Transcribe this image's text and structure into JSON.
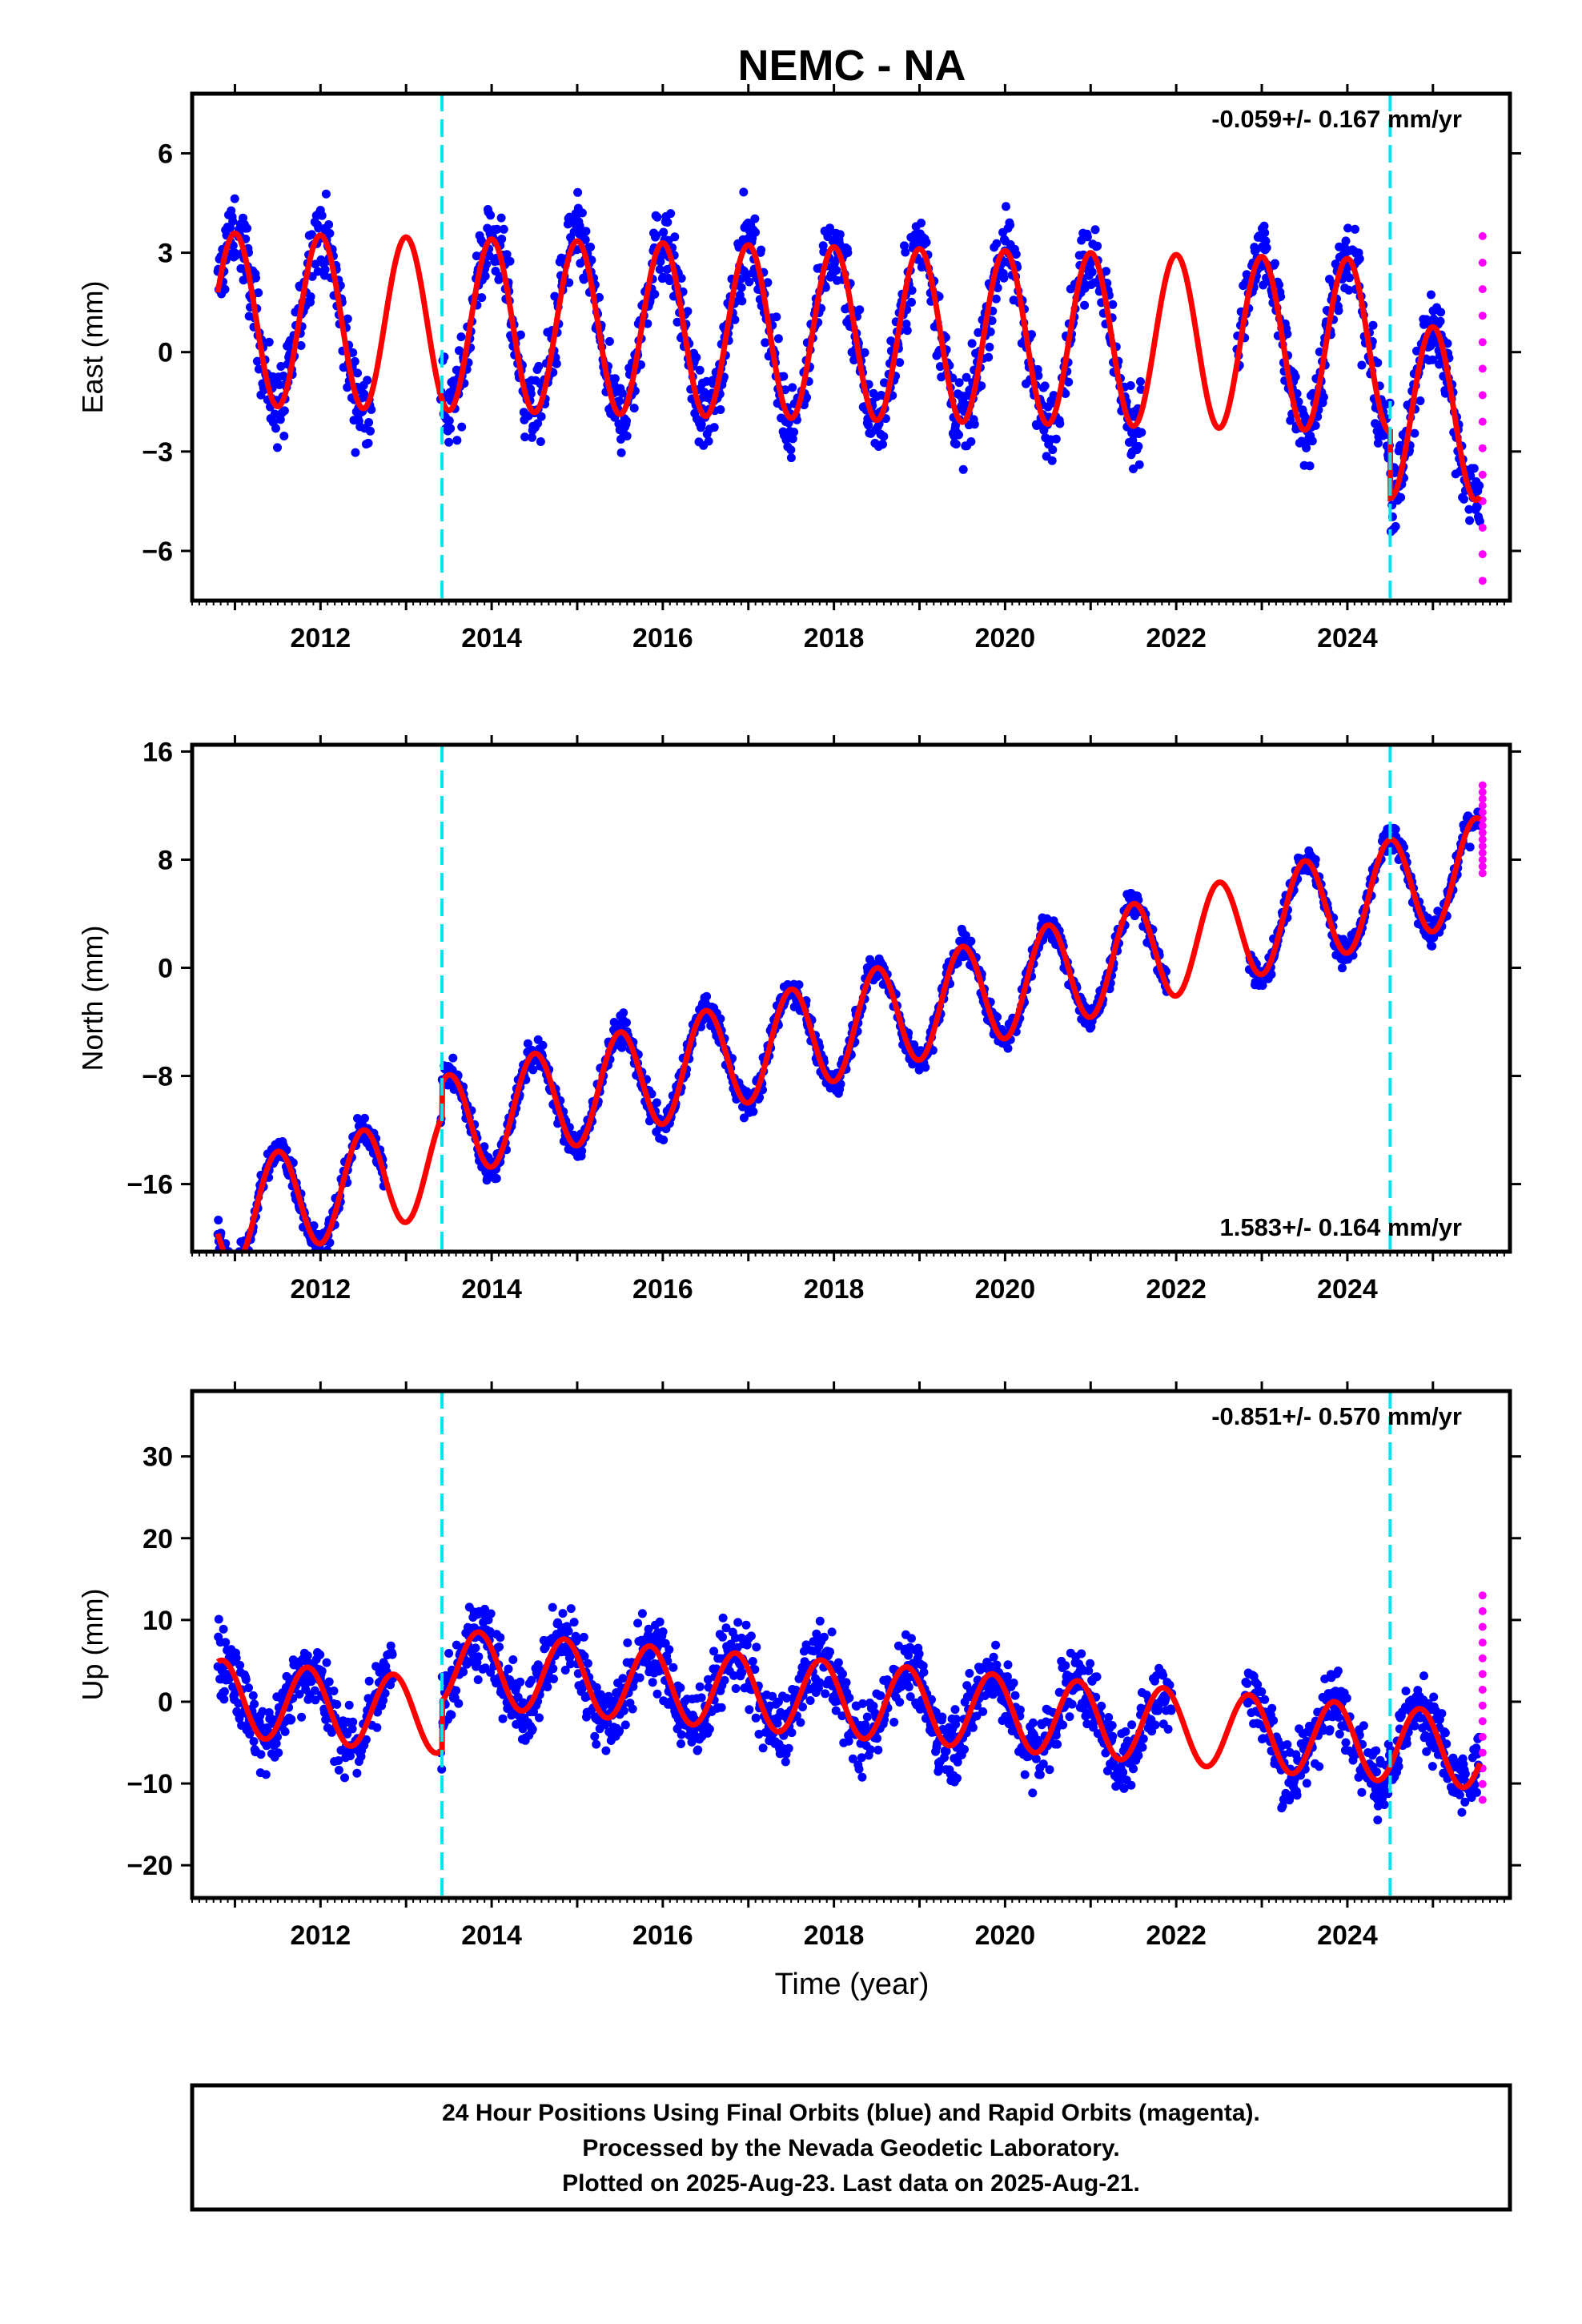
{
  "title": "NEMC - NA",
  "chart_data": [
    {
      "type": "scatter",
      "panel": "east",
      "ylabel": "East (mm)",
      "xlim": [
        2010.5,
        2025.9
      ],
      "ylim": [
        -7.5,
        7.8
      ],
      "x_ticks": [
        2012,
        2014,
        2016,
        2018,
        2020,
        2022,
        2024
      ],
      "y_ticks": [
        6,
        3,
        0,
        -3,
        -6
      ],
      "x_tick_labels": [
        "2012",
        "2014",
        "2016",
        "2018",
        "2020",
        "2022",
        "2024"
      ],
      "y_tick_labels": [
        "6",
        "3",
        "0",
        "−3",
        "−6"
      ],
      "rate_label": "-0.059+/- 0.167 mm/yr",
      "rate_position": "top-right",
      "model": {
        "offset": 1.0,
        "rate": -0.059,
        "amplitude": 2.6,
        "phase_year": 0.0,
        "x_start": 2010.8,
        "x_end": 2025.55
      },
      "steps": [
        {
          "x": 2024.5,
          "dy": -2.0
        }
      ],
      "breaks": [
        2013.42,
        2024.5
      ],
      "data_gaps": [
        [
          2012.6,
          2013.4
        ],
        [
          2021.6,
          2022.7
        ]
      ],
      "scatter_sd": 1.1,
      "rapid_x": 2025.58,
      "rapid_range": [
        -6.9,
        3.5
      ],
      "series": [
        {
          "name": "Final Orbits",
          "color": "#0000ff"
        },
        {
          "name": "Rapid Orbits",
          "color": "#ff00ff"
        },
        {
          "name": "model",
          "color": "#ff0000"
        }
      ]
    },
    {
      "type": "scatter",
      "panel": "north",
      "ylabel": "North (mm)",
      "xlim": [
        2010.5,
        2025.9
      ],
      "ylim": [
        -21,
        16.5
      ],
      "x_ticks": [
        2012,
        2014,
        2016,
        2018,
        2020,
        2022,
        2024
      ],
      "y_ticks": [
        16,
        8,
        0,
        -8,
        -16
      ],
      "x_tick_labels": [
        "2012",
        "2014",
        "2016",
        "2018",
        "2020",
        "2022",
        "2024"
      ],
      "y_tick_labels": [
        "16",
        "8",
        "0",
        "−8",
        "−16"
      ],
      "rate_label": "1.583+/- 0.164 mm/yr",
      "rate_position": "bottom-right",
      "model": {
        "offset": -18.5,
        "rate": 1.583,
        "amplitude": 3.8,
        "phase_year": 0.5,
        "x_start": 2010.8,
        "x_end": 2025.55
      },
      "steps": [
        {
          "x": 2013.42,
          "dy": 2.5
        }
      ],
      "breaks": [
        2013.42,
        2024.5
      ],
      "data_gaps": [
        [
          2012.75,
          2013.4
        ],
        [
          2021.9,
          2022.85
        ]
      ],
      "scatter_sd": 1.0,
      "rapid_x": 2025.58,
      "rapid_range": [
        7.0,
        13.5
      ],
      "series": [
        {
          "name": "Final Orbits",
          "color": "#0000ff"
        },
        {
          "name": "Rapid Orbits",
          "color": "#ff00ff"
        },
        {
          "name": "model",
          "color": "#ff0000"
        }
      ]
    },
    {
      "type": "scatter",
      "panel": "up",
      "ylabel": "Up (mm)",
      "xlim": [
        2010.5,
        2025.9
      ],
      "ylim": [
        -24,
        38
      ],
      "x_ticks": [
        2012,
        2014,
        2016,
        2018,
        2020,
        2022,
        2024
      ],
      "y_ticks": [
        30,
        20,
        10,
        0,
        -10,
        -20
      ],
      "x_tick_labels": [
        "2012",
        "2014",
        "2016",
        "2018",
        "2020",
        "2022",
        "2024"
      ],
      "y_tick_labels": [
        "30",
        "20",
        "10",
        "0",
        "−10",
        "−20"
      ],
      "xlabel": "Time (year)",
      "rate_label": "-0.851+/- 0.570 mm/yr",
      "rate_position": "top-right",
      "model": {
        "offset": 0.5,
        "rate": -0.851,
        "amplitude": 4.6,
        "phase_year": 0.85,
        "x_start": 2010.8,
        "x_end": 2025.55
      },
      "steps": [
        {
          "x": 2013.42,
          "dy": 6.0
        }
      ],
      "breaks": [
        2013.42,
        2024.5
      ],
      "data_gaps": [
        [
          2012.85,
          2013.4
        ],
        [
          2021.95,
          2022.8
        ]
      ],
      "scatter_sd": 4.0,
      "rapid_x": 2025.58,
      "rapid_range": [
        -12.0,
        13.0
      ],
      "series": [
        {
          "name": "Final Orbits",
          "color": "#0000ff"
        },
        {
          "name": "Rapid Orbits",
          "color": "#ff00ff"
        },
        {
          "name": "model",
          "color": "#ff0000"
        }
      ]
    }
  ],
  "footer": {
    "line1": "24 Hour Positions Using Final Orbits (blue) and Rapid Orbits (magenta).",
    "line2": "Processed by the Nevada Geodetic Laboratory.",
    "line3": "Plotted on 2025-Aug-23. Last data on 2025-Aug-21."
  },
  "colors": {
    "final": "#0000ff",
    "rapid": "#ff00ff",
    "model": "#ff0000",
    "break": "#00e5ee"
  }
}
